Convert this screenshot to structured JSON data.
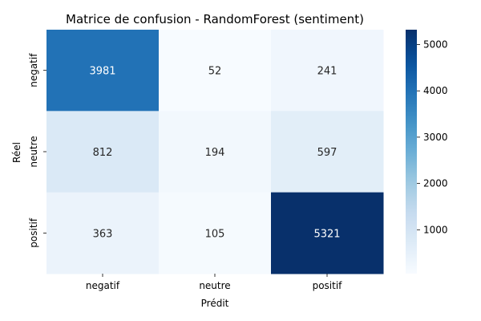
{
  "chart_data": {
    "type": "heatmap",
    "title": "Matrice de confusion - RandomForest (sentiment)",
    "xlabel": "Prédit",
    "ylabel": "Réel",
    "x_categories": [
      "negatif",
      "neutre",
      "positif"
    ],
    "y_categories": [
      "negatif",
      "neutre",
      "positif"
    ],
    "values": [
      [
        3981,
        52,
        241
      ],
      [
        812,
        194,
        597
      ],
      [
        363,
        105,
        5321
      ]
    ],
    "colormap": "Blues",
    "colorbar": {
      "range": [
        52,
        5321
      ],
      "ticks": [
        1000,
        2000,
        3000,
        4000,
        5000
      ]
    },
    "grid": false,
    "legend": "colorbar-right"
  }
}
